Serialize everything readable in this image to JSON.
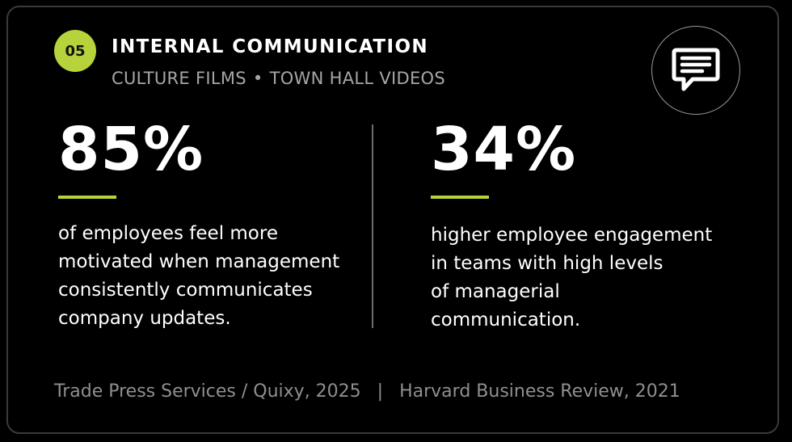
{
  "colors": {
    "accent": "#b7d33b",
    "background": "#000000",
    "text": "#ffffff",
    "muted": "#a6a6a6"
  },
  "header": {
    "number": "05",
    "title": "INTERNAL COMMUNICATION",
    "subtitle_left": "CULTURE FILMS",
    "subtitle_separator": "•",
    "subtitle_right": "TOWN HALL VIDEOS",
    "icon": "chat-bubble-icon"
  },
  "stats": [
    {
      "value": "85%",
      "lines": [
        "of employees feel more",
        "motivated when management",
        "consistently communicates",
        "company updates."
      ]
    },
    {
      "value": "34%",
      "lines": [
        "higher employee engagement",
        "in teams with high levels",
        "of managerial",
        "communication."
      ]
    }
  ],
  "sources": {
    "left": "Trade Press Services / Quixy, 2025",
    "separator": "|",
    "right": "Harvard Business Review, 2021"
  }
}
